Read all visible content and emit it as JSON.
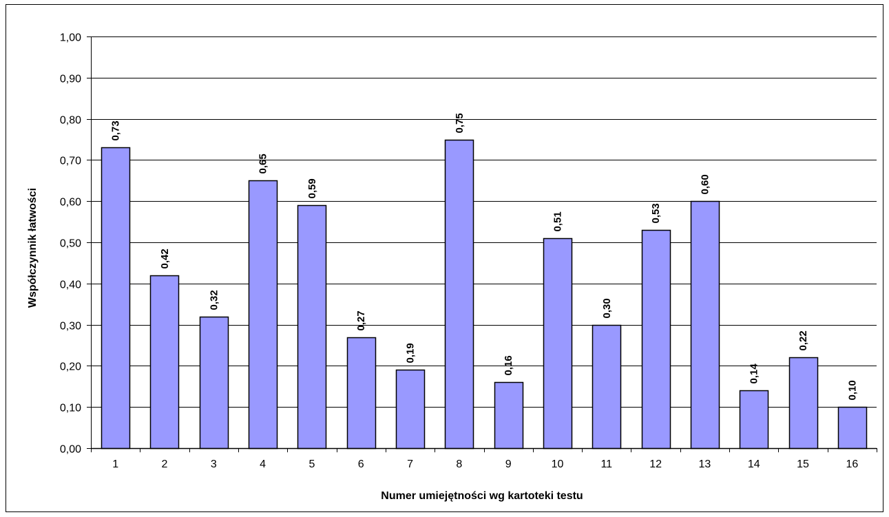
{
  "chart_data": {
    "type": "bar",
    "title": "",
    "xlabel": "Numer umiejętności wg kartoteki testu",
    "ylabel": "Współczynnik łatwości",
    "categories": [
      "1",
      "2",
      "3",
      "4",
      "5",
      "6",
      "7",
      "8",
      "9",
      "10",
      "11",
      "12",
      "13",
      "14",
      "15",
      "16"
    ],
    "values": [
      0.73,
      0.42,
      0.32,
      0.65,
      0.59,
      0.27,
      0.19,
      0.75,
      0.16,
      0.51,
      0.3,
      0.53,
      0.6,
      0.14,
      0.22,
      0.1
    ],
    "value_labels": [
      "0,73",
      "0,42",
      "0,32",
      "0,65",
      "0,59",
      "0,27",
      "0,19",
      "0,75",
      "0,16",
      "0,51",
      "0,30",
      "0,53",
      "0,60",
      "0,14",
      "0,22",
      "0,10"
    ],
    "ylim": [
      0,
      1
    ],
    "yticks": [
      0,
      0.1,
      0.2,
      0.3,
      0.4,
      0.5,
      0.6,
      0.7,
      0.8,
      0.9,
      1.0
    ],
    "ytick_labels": [
      "0,00",
      "0,10",
      "0,20",
      "0,30",
      "0,40",
      "0,50",
      "0,60",
      "0,70",
      "0,80",
      "0,90",
      "1,00"
    ],
    "grid": true,
    "legend": "none",
    "bar_color": "#9999ff",
    "bar_edge_color": "#000000",
    "grid_color": "#000000",
    "plot_background": "#ffffff"
  }
}
